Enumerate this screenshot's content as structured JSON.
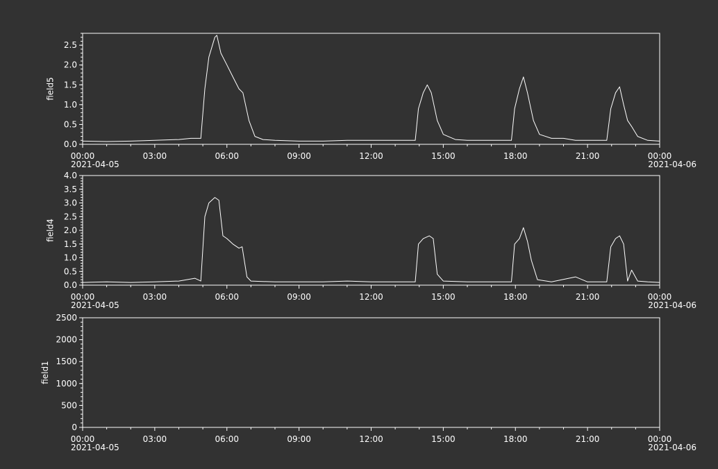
{
  "theme": {
    "background": "#323232",
    "foreground": "#ffffff"
  },
  "chart_data": [
    {
      "type": "line",
      "ylabel": "field5",
      "ylim": [
        0,
        2.8
      ],
      "yticks": [
        0.0,
        0.5,
        1.0,
        1.5,
        2.0,
        2.5
      ],
      "ytick_labels": [
        "0.0",
        "0.5",
        "1.0",
        "1.5",
        "2.0",
        "2.5"
      ],
      "xlim": [
        "2021-04-05 00:00",
        "2021-04-06 00:00"
      ],
      "xtick_labels": [
        "00:00",
        "03:00",
        "06:00",
        "09:00",
        "12:00",
        "15:00",
        "18:00",
        "21:00",
        "00:00"
      ],
      "date_labels": [
        "2021-04-05",
        "2021-04-06"
      ],
      "series": [
        {
          "x": [
            "2021-04-05 00:00",
            "2021-04-05 01:00",
            "2021-04-05 02:00",
            "2021-04-05 03:00",
            "2021-04-05 04:00",
            "2021-04-05 04:30",
            "2021-04-05 04:55",
            "2021-04-05 05:05",
            "2021-04-05 05:15",
            "2021-04-05 05:30",
            "2021-04-05 05:35",
            "2021-04-05 05:45",
            "2021-04-05 06:00",
            "2021-04-05 06:15",
            "2021-04-05 06:30",
            "2021-04-05 06:40",
            "2021-04-05 06:55",
            "2021-04-05 07:10",
            "2021-04-05 07:30",
            "2021-04-05 08:00",
            "2021-04-05 09:00",
            "2021-04-05 10:00",
            "2021-04-05 11:00",
            "2021-04-05 12:00",
            "2021-04-05 13:00",
            "2021-04-05 13:50",
            "2021-04-05 13:58",
            "2021-04-05 14:10",
            "2021-04-05 14:20",
            "2021-04-05 14:30",
            "2021-04-05 14:45",
            "2021-04-05 15:00",
            "2021-04-05 15:30",
            "2021-04-05 16:00",
            "2021-04-05 17:00",
            "2021-04-05 17:50",
            "2021-04-05 17:58",
            "2021-04-05 18:10",
            "2021-04-05 18:20",
            "2021-04-05 18:30",
            "2021-04-05 18:45",
            "2021-04-05 19:00",
            "2021-04-05 19:30",
            "2021-04-05 20:00",
            "2021-04-05 20:30",
            "2021-04-05 21:00",
            "2021-04-05 21:48",
            "2021-04-05 21:58",
            "2021-04-05 22:10",
            "2021-04-05 22:20",
            "2021-04-05 22:30",
            "2021-04-05 22:40",
            "2021-04-05 22:50",
            "2021-04-05 23:05",
            "2021-04-05 23:30",
            "2021-04-06 00:00"
          ],
          "y": [
            0.08,
            0.07,
            0.08,
            0.1,
            0.12,
            0.15,
            0.15,
            1.4,
            2.2,
            2.7,
            2.75,
            2.3,
            2.0,
            1.7,
            1.4,
            1.3,
            0.6,
            0.2,
            0.12,
            0.1,
            0.08,
            0.08,
            0.1,
            0.1,
            0.1,
            0.1,
            0.9,
            1.3,
            1.5,
            1.3,
            0.6,
            0.25,
            0.12,
            0.1,
            0.1,
            0.1,
            0.9,
            1.4,
            1.7,
            1.3,
            0.6,
            0.25,
            0.15,
            0.15,
            0.1,
            0.1,
            0.1,
            0.9,
            1.3,
            1.45,
            1.0,
            0.6,
            0.45,
            0.2,
            0.1,
            0.08
          ]
        }
      ]
    },
    {
      "type": "line",
      "ylabel": "field4",
      "ylim": [
        0,
        4.0
      ],
      "yticks": [
        0.0,
        0.5,
        1.0,
        1.5,
        2.0,
        2.5,
        3.0,
        3.5,
        4.0
      ],
      "ytick_labels": [
        "0.0",
        "0.5",
        "1.0",
        "1.5",
        "2.0",
        "2.5",
        "3.0",
        "3.5",
        "4.0"
      ],
      "xlim": [
        "2021-04-05 00:00",
        "2021-04-06 00:00"
      ],
      "xtick_labels": [
        "00:00",
        "03:00",
        "06:00",
        "09:00",
        "12:00",
        "15:00",
        "18:00",
        "21:00",
        "00:00"
      ],
      "date_labels": [
        "2021-04-05",
        "2021-04-06"
      ],
      "series": [
        {
          "x": [
            "2021-04-05 00:00",
            "2021-04-05 01:00",
            "2021-04-05 02:00",
            "2021-04-05 03:00",
            "2021-04-05 04:00",
            "2021-04-05 04:40",
            "2021-04-05 04:55",
            "2021-04-05 05:05",
            "2021-04-05 05:15",
            "2021-04-05 05:30",
            "2021-04-05 05:40",
            "2021-04-05 05:50",
            "2021-04-05 06:00",
            "2021-04-05 06:15",
            "2021-04-05 06:30",
            "2021-04-05 06:38",
            "2021-04-05 06:50",
            "2021-04-05 07:00",
            "2021-04-05 08:00",
            "2021-04-05 09:00",
            "2021-04-05 10:00",
            "2021-04-05 11:00",
            "2021-04-05 12:00",
            "2021-04-05 13:00",
            "2021-04-05 13:50",
            "2021-04-05 13:58",
            "2021-04-05 14:10",
            "2021-04-05 14:25",
            "2021-04-05 14:35",
            "2021-04-05 14:45",
            "2021-04-05 15:00",
            "2021-04-05 16:00",
            "2021-04-05 17:00",
            "2021-04-05 17:50",
            "2021-04-05 17:58",
            "2021-04-05 18:10",
            "2021-04-05 18:20",
            "2021-04-05 18:30",
            "2021-04-05 18:40",
            "2021-04-05 18:55",
            "2021-04-05 19:30",
            "2021-04-05 20:30",
            "2021-04-05 21:00",
            "2021-04-05 21:48",
            "2021-04-05 21:58",
            "2021-04-05 22:10",
            "2021-04-05 22:20",
            "2021-04-05 22:30",
            "2021-04-05 22:40",
            "2021-04-05 22:50",
            "2021-04-05 23:05",
            "2021-04-05 23:30",
            "2021-04-06 00:00"
          ],
          "y": [
            0.1,
            0.12,
            0.1,
            0.12,
            0.15,
            0.25,
            0.15,
            2.5,
            3.0,
            3.2,
            3.1,
            1.8,
            1.7,
            1.5,
            1.35,
            1.4,
            0.3,
            0.15,
            0.12,
            0.12,
            0.12,
            0.15,
            0.12,
            0.12,
            0.12,
            1.5,
            1.7,
            1.8,
            1.7,
            0.4,
            0.15,
            0.12,
            0.12,
            0.12,
            1.5,
            1.7,
            2.1,
            1.6,
            0.9,
            0.2,
            0.12,
            0.3,
            0.12,
            0.12,
            1.4,
            1.7,
            1.8,
            1.5,
            0.15,
            0.55,
            0.15,
            0.12,
            0.1
          ]
        }
      ]
    },
    {
      "type": "line",
      "ylabel": "field1",
      "ylim": [
        0,
        2500
      ],
      "yticks": [
        0,
        500,
        1000,
        1500,
        2000,
        2500
      ],
      "ytick_labels": [
        "0",
        "500",
        "1000",
        "1500",
        "2000",
        "2500"
      ],
      "xlim": [
        "2021-04-05 00:00",
        "2021-04-06 00:00"
      ],
      "xtick_labels": [
        "00:00",
        "03:00",
        "06:00",
        "09:00",
        "12:00",
        "15:00",
        "18:00",
        "21:00",
        "00:00"
      ],
      "date_labels": [
        "2021-04-05",
        "2021-04-06"
      ],
      "series": []
    }
  ]
}
